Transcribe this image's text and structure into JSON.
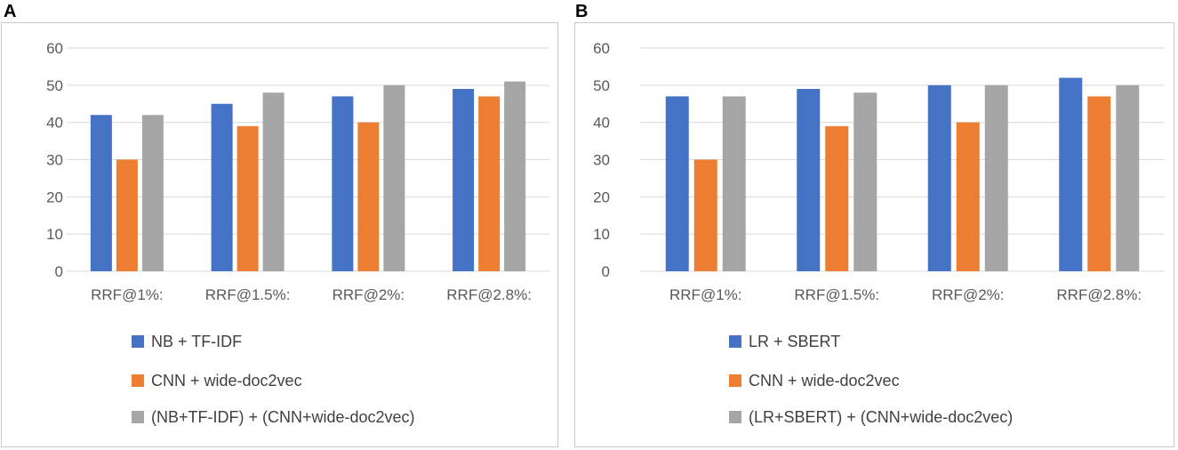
{
  "panels": [
    {
      "label": "A"
    },
    {
      "label": "B"
    }
  ],
  "chart_data": [
    {
      "type": "bar",
      "panel": "A",
      "title": "",
      "xlabel": "",
      "ylabel": "",
      "ylim": [
        0,
        60
      ],
      "yticks": [
        0,
        10,
        20,
        30,
        40,
        50,
        60
      ],
      "grid": true,
      "legend_position": "bottom",
      "categories": [
        "RRF@1%:",
        "RRF@1.5%:",
        "RRF@2%:",
        "RRF@2.8%:"
      ],
      "series": [
        {
          "name": "NB + TF-IDF",
          "color": "#4472C4",
          "values": [
            42,
            45,
            47,
            49
          ]
        },
        {
          "name": "CNN + wide-doc2vec",
          "color": "#ED7D31",
          "values": [
            30,
            39,
            40,
            47
          ]
        },
        {
          "name": "(NB+TF-IDF) + (CNN+wide-doc2vec)",
          "color": "#A5A5A5",
          "values": [
            42,
            48,
            50,
            51
          ]
        }
      ]
    },
    {
      "type": "bar",
      "panel": "B",
      "title": "",
      "xlabel": "",
      "ylabel": "",
      "ylim": [
        0,
        60
      ],
      "yticks": [
        0,
        10,
        20,
        30,
        40,
        50,
        60
      ],
      "grid": true,
      "legend_position": "bottom",
      "categories": [
        "RRF@1%:",
        "RRF@1.5%:",
        "RRF@2%:",
        "RRF@2.8%:"
      ],
      "series": [
        {
          "name": "LR + SBERT",
          "color": "#4472C4",
          "values": [
            47,
            49,
            50,
            52
          ]
        },
        {
          "name": "CNN + wide-doc2vec",
          "color": "#ED7D31",
          "values": [
            30,
            39,
            40,
            47
          ]
        },
        {
          "name": "(LR+SBERT) + (CNN+wide-doc2vec)",
          "color": "#A5A5A5",
          "values": [
            47,
            48,
            50,
            50
          ]
        }
      ]
    }
  ]
}
